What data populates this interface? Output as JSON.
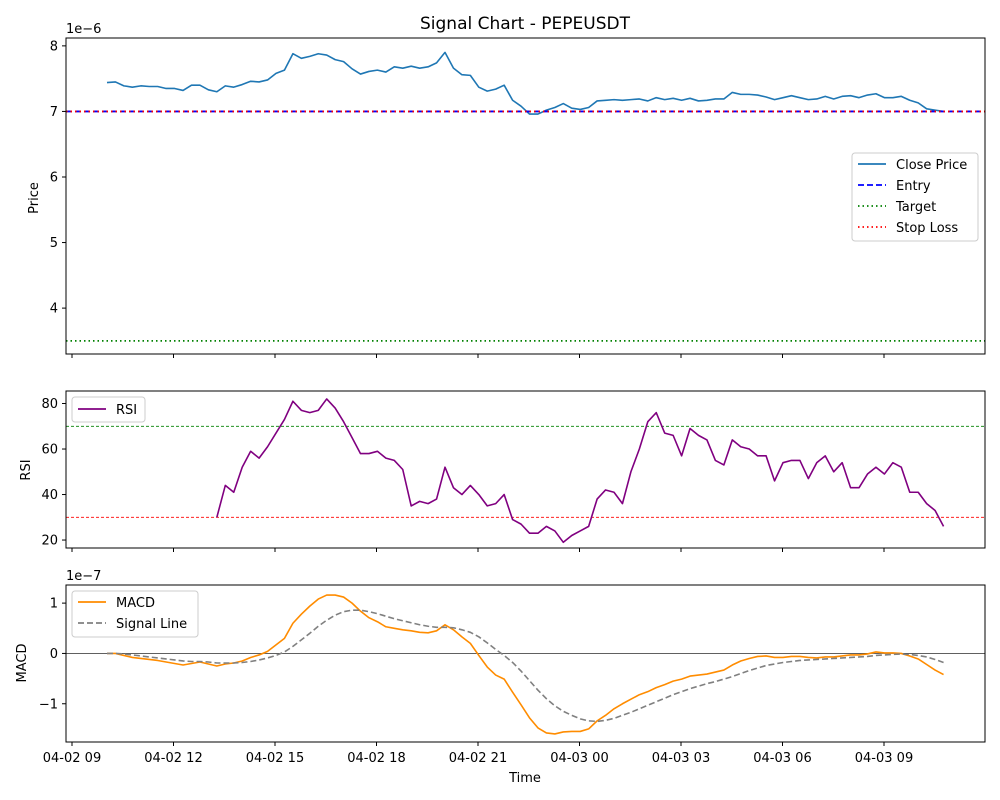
{
  "chart_data": [
    {
      "type": "line",
      "title": "Signal Chart - PEPEUSDT",
      "ylabel": "Price",
      "offset_label": "1e−6",
      "ylim": [
        3.3,
        8.12
      ],
      "yticks": [
        4,
        5,
        6,
        7,
        8
      ],
      "grid": false,
      "legend": "center-right",
      "series": [
        {
          "name": "Close Price",
          "color": "#1f77b4",
          "style": "solid",
          "values": [
            7.44,
            7.45,
            7.39,
            7.37,
            7.39,
            7.38,
            7.38,
            7.35,
            7.35,
            7.32,
            7.4,
            7.4,
            7.33,
            7.3,
            7.39,
            7.37,
            7.41,
            7.46,
            7.45,
            7.48,
            7.58,
            7.63,
            7.88,
            7.81,
            7.84,
            7.88,
            7.86,
            7.79,
            7.76,
            7.65,
            7.57,
            7.61,
            7.63,
            7.6,
            7.68,
            7.66,
            7.69,
            7.66,
            7.68,
            7.74,
            7.9,
            7.66,
            7.56,
            7.55,
            7.37,
            7.31,
            7.34,
            7.4,
            7.17,
            7.08,
            6.96,
            6.96,
            7.02,
            7.06,
            7.12,
            7.05,
            7.03,
            7.06,
            7.16,
            7.17,
            7.18,
            7.17,
            7.18,
            7.19,
            7.16,
            7.21,
            7.18,
            7.2,
            7.17,
            7.2,
            7.16,
            7.17,
            7.19,
            7.19,
            7.29,
            7.26,
            7.26,
            7.25,
            7.22,
            7.18,
            7.21,
            7.24,
            7.21,
            7.18,
            7.19,
            7.23,
            7.19,
            7.23,
            7.24,
            7.21,
            7.25,
            7.27,
            7.21,
            7.21,
            7.23,
            7.17,
            7.13,
            7.04,
            7.02,
            7.0
          ]
        },
        {
          "name": "Entry",
          "color": "#0000ff",
          "style": "dashed",
          "value": 7.0
        },
        {
          "name": "Target",
          "color": "#008000",
          "style": "dotted",
          "value": 3.5
        },
        {
          "name": "Stop Loss",
          "color": "#ff0000",
          "style": "dotted",
          "value": 7.0
        }
      ]
    },
    {
      "type": "line",
      "ylabel": "RSI",
      "ylim": [
        16.5,
        85.5
      ],
      "yticks": [
        20,
        40,
        60,
        80
      ],
      "legend": "top-left",
      "reference_lines": [
        {
          "value": 70,
          "color": "#008000"
        },
        {
          "value": 30,
          "color": "#ff0000"
        }
      ],
      "series": [
        {
          "name": "RSI",
          "color": "#800080",
          "start_index": 13,
          "values": [
            30,
            44,
            41,
            52,
            59,
            56,
            61,
            67,
            73,
            81,
            77,
            76,
            77,
            82,
            78,
            72,
            65,
            58,
            58,
            59,
            56,
            55,
            51,
            35,
            37,
            36,
            38,
            52,
            43,
            40,
            44,
            40,
            35,
            36,
            40,
            29,
            27,
            23,
            23,
            26,
            24,
            19,
            22,
            24,
            26,
            38,
            42,
            41,
            36,
            50,
            60,
            72,
            76,
            67,
            66,
            57,
            69,
            66,
            64,
            55,
            53,
            64,
            61,
            60,
            57,
            57,
            46,
            54,
            55,
            55,
            47,
            54,
            57,
            50,
            54,
            43,
            43,
            49,
            52,
            49,
            54,
            52,
            41,
            41,
            36,
            33,
            26
          ]
        }
      ]
    },
    {
      "type": "line",
      "ylabel": "MACD",
      "offset_label": "1e−7",
      "ylim": [
        -1.76,
        1.36
      ],
      "yticks": [
        -1,
        0,
        1
      ],
      "legend": "top-left",
      "reference_lines": [
        {
          "value": 0,
          "color": "#000000"
        }
      ],
      "series": [
        {
          "name": "MACD",
          "color": "#ff8c00",
          "style": "solid",
          "values": [
            0.0,
            0.0,
            -0.04,
            -0.08,
            -0.1,
            -0.12,
            -0.14,
            -0.17,
            -0.2,
            -0.23,
            -0.2,
            -0.17,
            -0.21,
            -0.25,
            -0.21,
            -0.19,
            -0.15,
            -0.08,
            -0.03,
            0.04,
            0.17,
            0.3,
            0.6,
            0.78,
            0.94,
            1.08,
            1.16,
            1.16,
            1.12,
            1.0,
            0.84,
            0.71,
            0.63,
            0.53,
            0.5,
            0.47,
            0.45,
            0.42,
            0.41,
            0.45,
            0.57,
            0.47,
            0.33,
            0.2,
            -0.04,
            -0.27,
            -0.43,
            -0.51,
            -0.77,
            -1.02,
            -1.28,
            -1.48,
            -1.58,
            -1.6,
            -1.56,
            -1.55,
            -1.55,
            -1.5,
            -1.34,
            -1.23,
            -1.1,
            -1.0,
            -0.91,
            -0.82,
            -0.76,
            -0.68,
            -0.62,
            -0.55,
            -0.51,
            -0.45,
            -0.43,
            -0.41,
            -0.37,
            -0.33,
            -0.23,
            -0.15,
            -0.1,
            -0.06,
            -0.05,
            -0.08,
            -0.08,
            -0.06,
            -0.06,
            -0.08,
            -0.09,
            -0.07,
            -0.07,
            -0.05,
            -0.03,
            -0.03,
            -0.01,
            0.03,
            0.01,
            0.01,
            0.0,
            -0.05,
            -0.11,
            -0.22,
            -0.33,
            -0.42
          ]
        },
        {
          "name": "Signal Line",
          "color": "#808080",
          "style": "dashed",
          "values": [
            0.0,
            0.0,
            -0.01,
            -0.03,
            -0.05,
            -0.07,
            -0.09,
            -0.11,
            -0.13,
            -0.15,
            -0.16,
            -0.16,
            -0.17,
            -0.19,
            -0.19,
            -0.19,
            -0.18,
            -0.16,
            -0.13,
            -0.09,
            -0.04,
            0.03,
            0.14,
            0.27,
            0.4,
            0.54,
            0.66,
            0.76,
            0.83,
            0.86,
            0.86,
            0.83,
            0.79,
            0.74,
            0.69,
            0.65,
            0.61,
            0.57,
            0.54,
            0.52,
            0.52,
            0.51,
            0.47,
            0.42,
            0.33,
            0.21,
            0.08,
            -0.04,
            -0.18,
            -0.35,
            -0.54,
            -0.73,
            -0.9,
            -1.04,
            -1.15,
            -1.23,
            -1.3,
            -1.34,
            -1.35,
            -1.33,
            -1.29,
            -1.23,
            -1.17,
            -1.1,
            -1.03,
            -0.96,
            -0.89,
            -0.82,
            -0.76,
            -0.7,
            -0.65,
            -0.6,
            -0.56,
            -0.51,
            -0.46,
            -0.4,
            -0.34,
            -0.29,
            -0.24,
            -0.21,
            -0.18,
            -0.16,
            -0.14,
            -0.13,
            -0.12,
            -0.11,
            -0.1,
            -0.09,
            -0.08,
            -0.07,
            -0.06,
            -0.04,
            -0.03,
            -0.02,
            -0.01,
            -0.02,
            -0.04,
            -0.07,
            -0.12,
            -0.18
          ]
        }
      ]
    }
  ],
  "x_axis": {
    "xlabel": "Time",
    "ticks": [
      "04-02 09",
      "04-02 12",
      "04-02 15",
      "04-02 18",
      "04-02 21",
      "04-03 00",
      "04-03 03",
      "04-03 06",
      "04-03 09"
    ]
  }
}
